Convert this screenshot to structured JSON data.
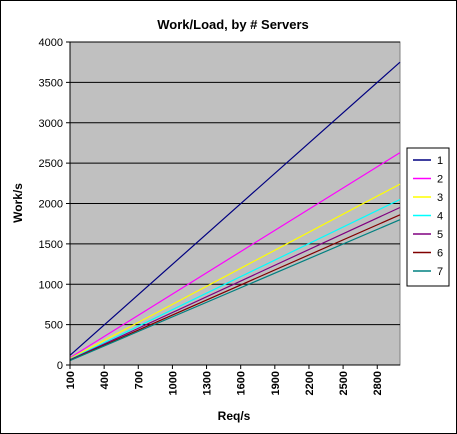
{
  "chart_data": {
    "type": "line",
    "title": "Work/Load, by # Servers",
    "xlabel": "Req/s",
    "ylabel": "Work/s",
    "x_tick_labels": [
      "100",
      "400",
      "700",
      "1000",
      "1300",
      "1600",
      "1900",
      "2200",
      "2500",
      "2800"
    ],
    "y_tick_labels": [
      "0",
      "500",
      "1000",
      "1500",
      "2000",
      "2500",
      "3000",
      "3500",
      "4000"
    ],
    "xlim": [
      100,
      3000
    ],
    "ylim": [
      0,
      4000
    ],
    "grid": "horizontal",
    "legend_position": "right",
    "plot_background": "#c0c0c0",
    "series": [
      {
        "name": "1",
        "color": "#000080",
        "x": [
          100,
          3000
        ],
        "y": [
          120,
          3750
        ]
      },
      {
        "name": "2",
        "color": "#ff00ff",
        "x": [
          100,
          3000
        ],
        "y": [
          90,
          2630
        ]
      },
      {
        "name": "3",
        "color": "#ffff00",
        "x": [
          100,
          3000
        ],
        "y": [
          80,
          2240
        ]
      },
      {
        "name": "4",
        "color": "#00ffff",
        "x": [
          100,
          3000
        ],
        "y": [
          70,
          2050
        ]
      },
      {
        "name": "5",
        "color": "#800080",
        "x": [
          100,
          3000
        ],
        "y": [
          65,
          1950
        ]
      },
      {
        "name": "6",
        "color": "#800000",
        "x": [
          100,
          3000
        ],
        "y": [
          60,
          1860
        ]
      },
      {
        "name": "7",
        "color": "#008080",
        "x": [
          100,
          3000
        ],
        "y": [
          55,
          1800
        ]
      }
    ]
  }
}
